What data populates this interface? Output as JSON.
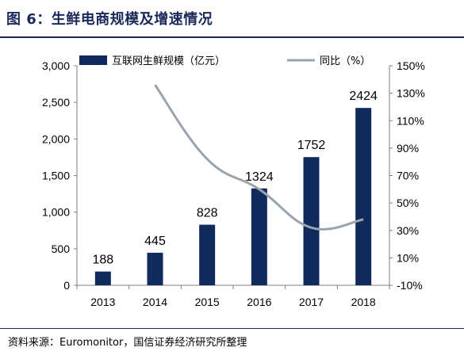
{
  "figure": {
    "title": "图 6：生鲜电商规模及增速情况",
    "source": "资料来源：Euromonitor，国信证券经济研究所整理"
  },
  "chart_data": {
    "type": "bar",
    "categories": [
      "2013",
      "2014",
      "2015",
      "2016",
      "2017",
      "2018"
    ],
    "series": [
      {
        "name": "互联网生鲜规模（亿元）",
        "type": "bar",
        "axis": "left",
        "values": [
          188,
          445,
          828,
          1324,
          1752,
          2424
        ],
        "data_labels": [
          "188",
          "445",
          "828",
          "1324",
          "1752",
          "2424"
        ]
      },
      {
        "name": "同比（%）",
        "type": "line",
        "axis": "right",
        "values": [
          null,
          136,
          82,
          60,
          32,
          38
        ]
      }
    ],
    "y_left": {
      "min": 0,
      "max": 3000,
      "ticks": [
        0,
        500,
        1000,
        1500,
        2000,
        2500,
        3000
      ],
      "tick_labels": [
        "0",
        "500",
        "1,000",
        "1,500",
        "2,000",
        "2,500",
        "3,000"
      ]
    },
    "y_right": {
      "min": -10,
      "max": 150,
      "ticks": [
        -10,
        10,
        30,
        50,
        70,
        90,
        110,
        130,
        150
      ],
      "tick_labels": [
        "-10%",
        "10%",
        "30%",
        "50%",
        "70%",
        "90%",
        "110%",
        "130%",
        "150%"
      ]
    },
    "legend_position": "top",
    "grid": false,
    "colors": {
      "bar": "#102a5c",
      "line": "#9aa4ae",
      "axis": "#7f7f7f"
    }
  }
}
